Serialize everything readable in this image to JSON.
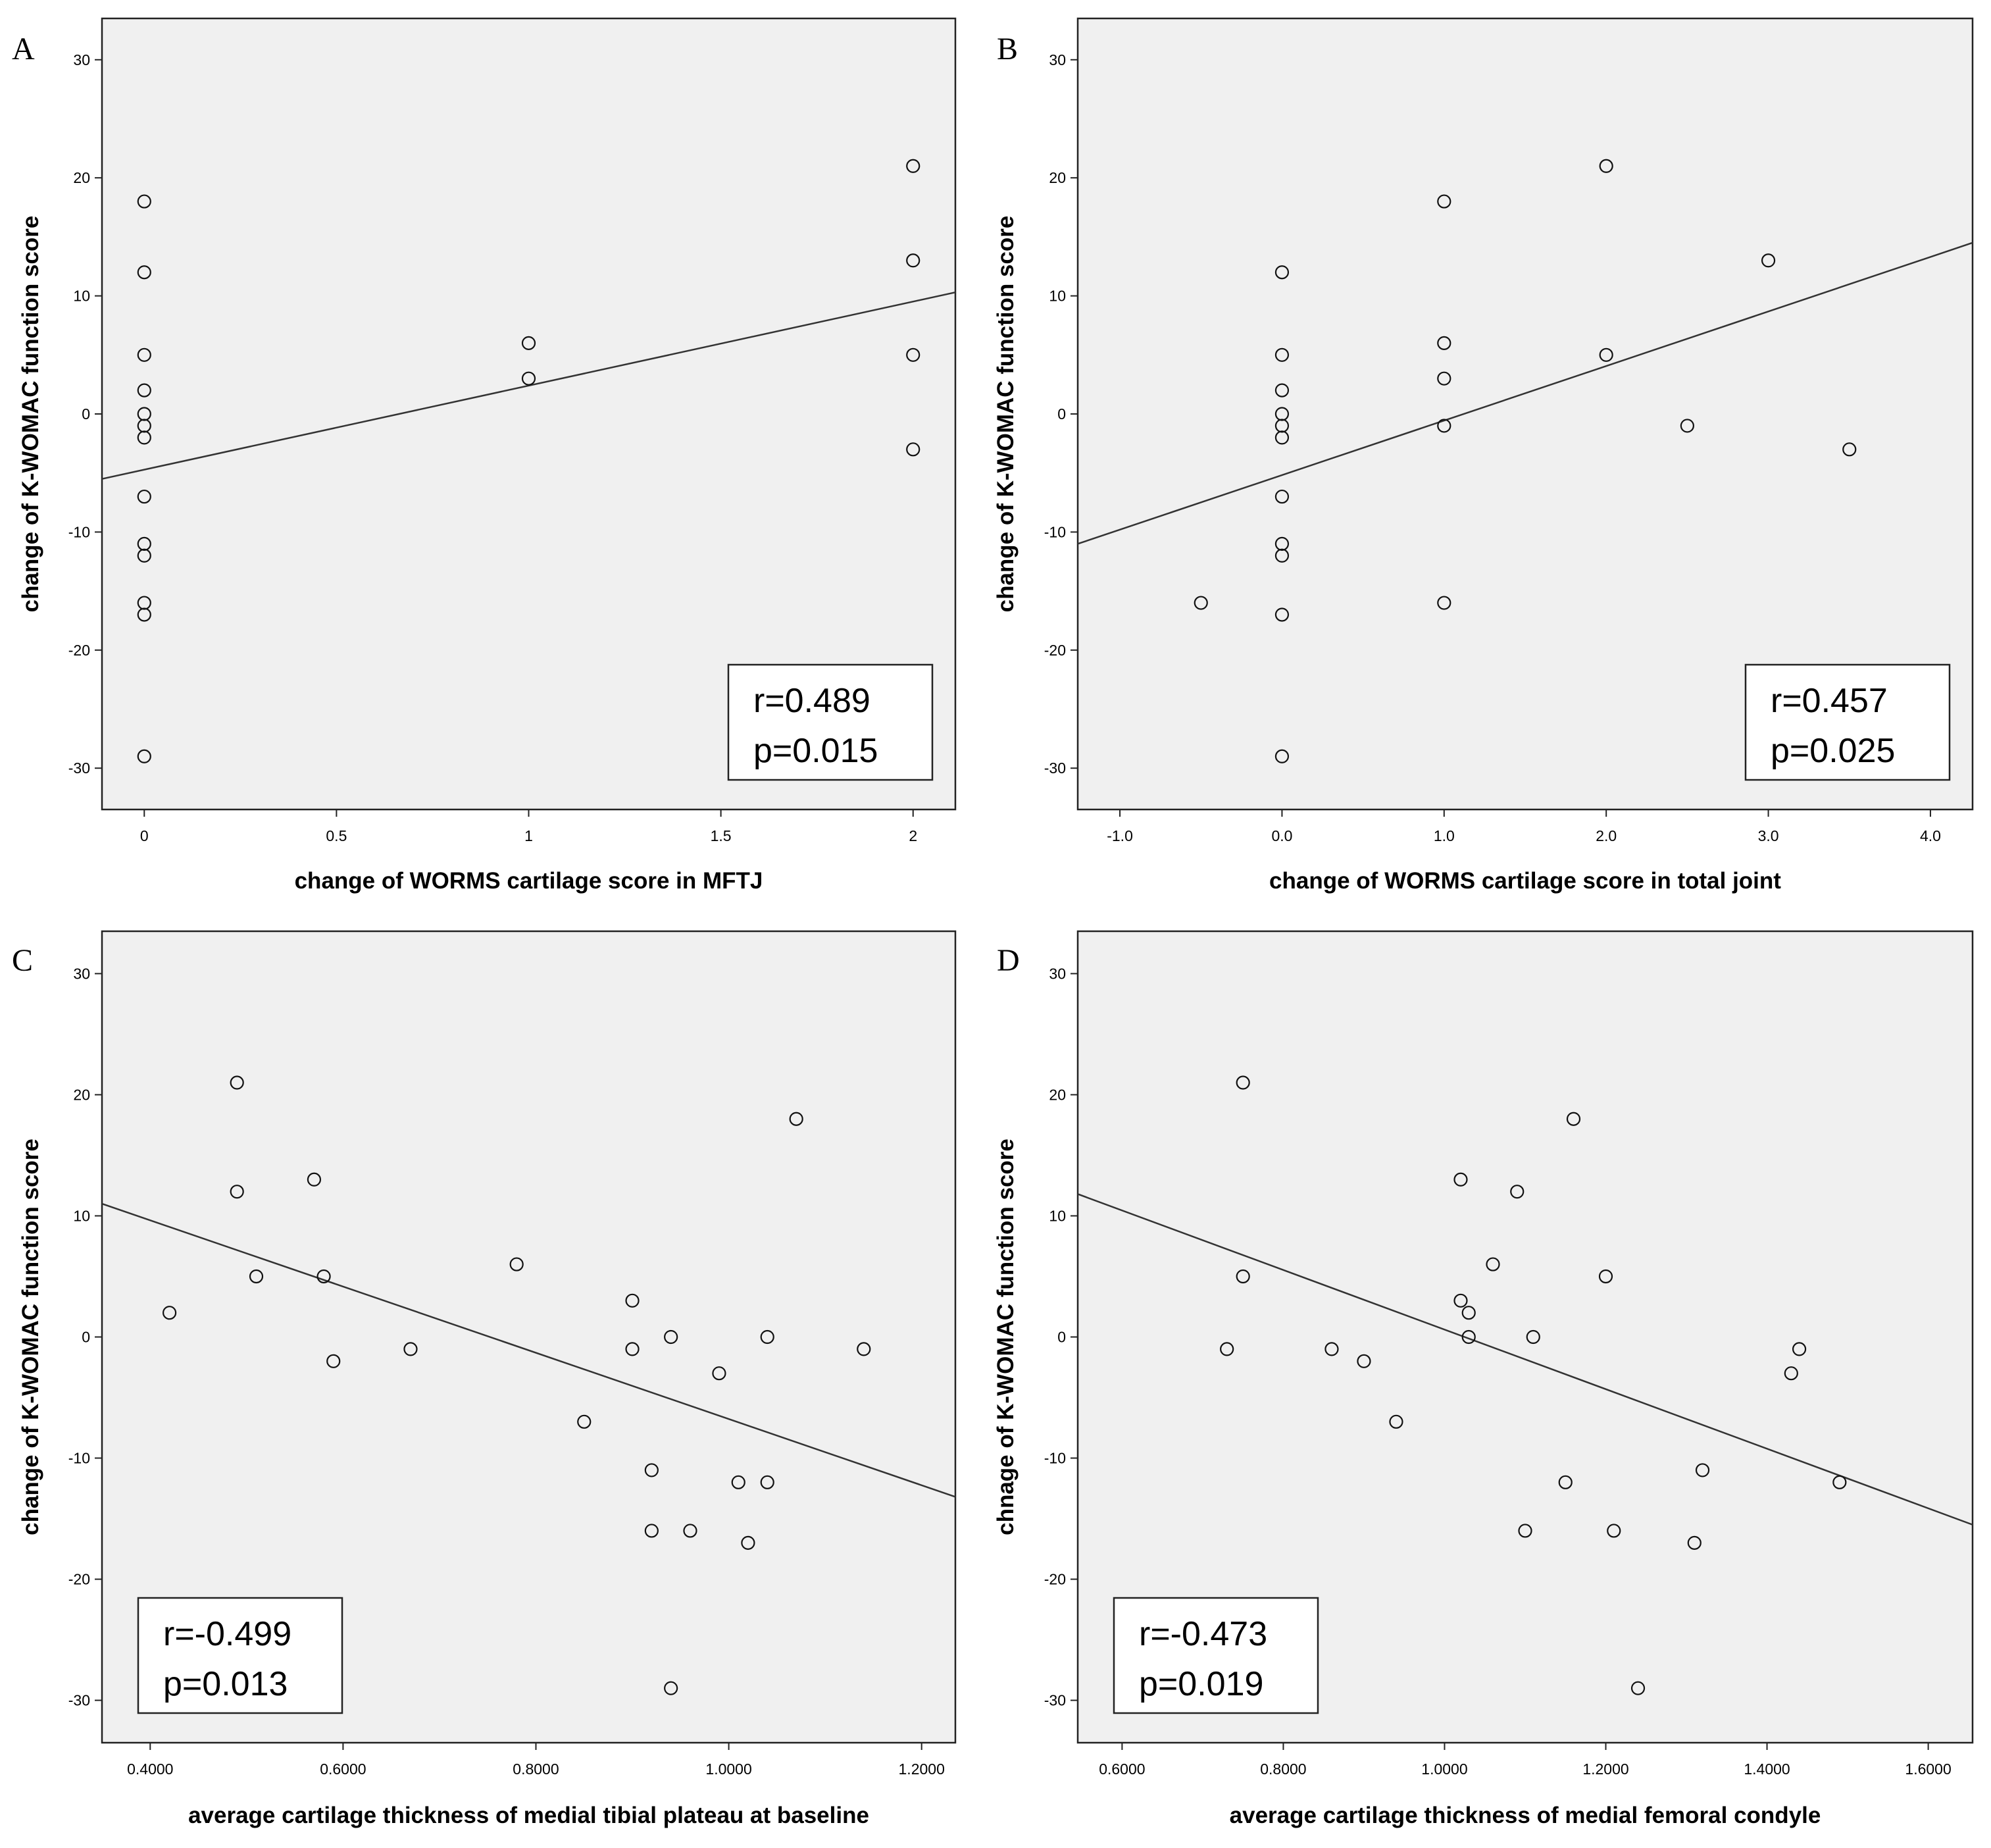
{
  "chart_data": [
    {
      "panel_label": "A",
      "type": "scatter",
      "xlabel": "change of WORMS cartilage score in MFTJ",
      "ylabel": "change of K-WOMAC function score",
      "xlim": [
        -0.11,
        2.11
      ],
      "ylim": [
        -33.5,
        33.5
      ],
      "xticks": [
        0,
        0.5,
        1,
        1.5,
        2
      ],
      "xtick_labels": [
        "0",
        "0.5",
        "1",
        "1.5",
        "2"
      ],
      "yticks": [
        -30,
        -20,
        -10,
        0,
        10,
        20,
        30
      ],
      "ytick_labels": [
        "-30",
        "-20",
        "-10",
        "0",
        "10",
        "20",
        "30"
      ],
      "points": [
        {
          "x": 0,
          "y": 18
        },
        {
          "x": 0,
          "y": 12
        },
        {
          "x": 0,
          "y": 5
        },
        {
          "x": 0,
          "y": 2
        },
        {
          "x": 0,
          "y": 0
        },
        {
          "x": 0,
          "y": -1
        },
        {
          "x": 0,
          "y": -2
        },
        {
          "x": 0,
          "y": -7
        },
        {
          "x": 0,
          "y": -11
        },
        {
          "x": 0,
          "y": -12
        },
        {
          "x": 0,
          "y": -16
        },
        {
          "x": 0,
          "y": -17
        },
        {
          "x": 0,
          "y": -29
        },
        {
          "x": 1,
          "y": 6
        },
        {
          "x": 1,
          "y": 3
        },
        {
          "x": 2,
          "y": 21
        },
        {
          "x": 2,
          "y": 13
        },
        {
          "x": 2,
          "y": 5
        },
        {
          "x": 2,
          "y": -3
        }
      ],
      "fit_line": {
        "x": [
          -0.11,
          2.11
        ],
        "y": [
          -5.5,
          10.3
        ]
      },
      "annotation": {
        "r": "r=0.489",
        "p": "p=0.015",
        "position": "bottom-right"
      }
    },
    {
      "panel_label": "B",
      "type": "scatter",
      "xlabel": "change of WORMS cartilage score in total joint",
      "ylabel": "change of K-WOMAC function score",
      "xlim": [
        -1.26,
        4.26
      ],
      "ylim": [
        -33.5,
        33.5
      ],
      "xticks": [
        -1,
        0,
        1,
        2,
        3,
        4
      ],
      "xtick_labels": [
        "-1.0",
        "0.0",
        "1.0",
        "2.0",
        "3.0",
        "4.0"
      ],
      "yticks": [
        -30,
        -20,
        -10,
        0,
        10,
        20,
        30
      ],
      "ytick_labels": [
        "-30",
        "-20",
        "-10",
        "0",
        "10",
        "20",
        "30"
      ],
      "points": [
        {
          "x": 0,
          "y": 12
        },
        {
          "x": 0,
          "y": 5
        },
        {
          "x": 0,
          "y": 2
        },
        {
          "x": 0,
          "y": 0
        },
        {
          "x": 0,
          "y": -1
        },
        {
          "x": 0,
          "y": -2
        },
        {
          "x": 0,
          "y": -7
        },
        {
          "x": 0,
          "y": -11
        },
        {
          "x": 0,
          "y": -12
        },
        {
          "x": 0,
          "y": -17
        },
        {
          "x": 0,
          "y": -29
        },
        {
          "x": -0.5,
          "y": -16
        },
        {
          "x": 1,
          "y": 18
        },
        {
          "x": 1,
          "y": 6
        },
        {
          "x": 1,
          "y": 3
        },
        {
          "x": 1,
          "y": -1
        },
        {
          "x": 1,
          "y": -16
        },
        {
          "x": 2,
          "y": 21
        },
        {
          "x": 2,
          "y": 5
        },
        {
          "x": 2.5,
          "y": -1
        },
        {
          "x": 3,
          "y": 13
        },
        {
          "x": 3.5,
          "y": -3
        }
      ],
      "fit_line": {
        "x": [
          -1.26,
          4.26
        ],
        "y": [
          -11,
          14.5
        ]
      },
      "annotation": {
        "r": "r=0.457",
        "p": "p=0.025",
        "position": "bottom-right"
      }
    },
    {
      "panel_label": "C",
      "type": "scatter",
      "xlabel": "average cartilage thickness of medial tibial plateau at baseline",
      "ylabel": "change of K-WOMAC function score",
      "xlim": [
        0.35,
        1.235
      ],
      "ylim": [
        -33.5,
        33.5
      ],
      "xticks": [
        0.4,
        0.6,
        0.8,
        1.0,
        1.2
      ],
      "xtick_labels": [
        "0.4000",
        "0.6000",
        "0.8000",
        "1.0000",
        "1.2000"
      ],
      "yticks": [
        -30,
        -20,
        -10,
        0,
        10,
        20,
        30
      ],
      "ytick_labels": [
        "-30",
        "-20",
        "-10",
        "0",
        "10",
        "20",
        "30"
      ],
      "points": [
        {
          "x": 0.42,
          "y": 2
        },
        {
          "x": 0.49,
          "y": 21
        },
        {
          "x": 0.49,
          "y": 12
        },
        {
          "x": 0.51,
          "y": 5
        },
        {
          "x": 0.57,
          "y": 13
        },
        {
          "x": 0.58,
          "y": 5
        },
        {
          "x": 0.59,
          "y": -2
        },
        {
          "x": 0.67,
          "y": -1
        },
        {
          "x": 0.78,
          "y": 6
        },
        {
          "x": 0.85,
          "y": -7
        },
        {
          "x": 0.9,
          "y": 3
        },
        {
          "x": 0.9,
          "y": -1
        },
        {
          "x": 0.92,
          "y": -11
        },
        {
          "x": 0.92,
          "y": -16
        },
        {
          "x": 0.94,
          "y": 0
        },
        {
          "x": 0.94,
          "y": -29
        },
        {
          "x": 0.96,
          "y": -16
        },
        {
          "x": 0.99,
          "y": -3
        },
        {
          "x": 1.01,
          "y": -12
        },
        {
          "x": 1.02,
          "y": -17
        },
        {
          "x": 1.04,
          "y": 0
        },
        {
          "x": 1.04,
          "y": -12
        },
        {
          "x": 1.07,
          "y": 18
        },
        {
          "x": 1.14,
          "y": -1
        }
      ],
      "fit_line": {
        "x": [
          0.35,
          1.235
        ],
        "y": [
          11,
          -13.2
        ]
      },
      "annotation": {
        "r": "r=-0.499",
        "p": "p=0.013",
        "position": "bottom-left"
      }
    },
    {
      "panel_label": "D",
      "type": "scatter",
      "xlabel": "average cartilage thickness of medial femoral condyle",
      "ylabel": "chnage of K-WOMAC function score",
      "xlim": [
        0.545,
        1.655
      ],
      "ylim": [
        -33.5,
        33.5
      ],
      "xticks": [
        0.6,
        0.8,
        1.0,
        1.2,
        1.4,
        1.6
      ],
      "xtick_labels": [
        "0.6000",
        "0.8000",
        "1.0000",
        "1.2000",
        "1.4000",
        "1.6000"
      ],
      "yticks": [
        -30,
        -20,
        -10,
        0,
        10,
        20,
        30
      ],
      "ytick_labels": [
        "-30",
        "-20",
        "-10",
        "0",
        "10",
        "20",
        "30"
      ],
      "points": [
        {
          "x": 0.73,
          "y": -1
        },
        {
          "x": 0.75,
          "y": 21
        },
        {
          "x": 0.75,
          "y": 5
        },
        {
          "x": 0.86,
          "y": -1
        },
        {
          "x": 0.9,
          "y": -2
        },
        {
          "x": 0.94,
          "y": -7
        },
        {
          "x": 1.02,
          "y": 13
        },
        {
          "x": 1.02,
          "y": 3
        },
        {
          "x": 1.03,
          "y": 2
        },
        {
          "x": 1.03,
          "y": 0
        },
        {
          "x": 1.06,
          "y": 6
        },
        {
          "x": 1.09,
          "y": 12
        },
        {
          "x": 1.1,
          "y": -16
        },
        {
          "x": 1.11,
          "y": 0
        },
        {
          "x": 1.15,
          "y": -12
        },
        {
          "x": 1.16,
          "y": 18
        },
        {
          "x": 1.2,
          "y": 5
        },
        {
          "x": 1.21,
          "y": -16
        },
        {
          "x": 1.24,
          "y": -29
        },
        {
          "x": 1.31,
          "y": -17
        },
        {
          "x": 1.32,
          "y": -11
        },
        {
          "x": 1.43,
          "y": -3
        },
        {
          "x": 1.44,
          "y": -1
        },
        {
          "x": 1.49,
          "y": -12
        }
      ],
      "fit_line": {
        "x": [
          0.545,
          1.655
        ],
        "y": [
          11.8,
          -15.5
        ]
      },
      "annotation": {
        "r": "r=-0.473",
        "p": "p=0.019",
        "position": "bottom-left"
      }
    }
  ]
}
